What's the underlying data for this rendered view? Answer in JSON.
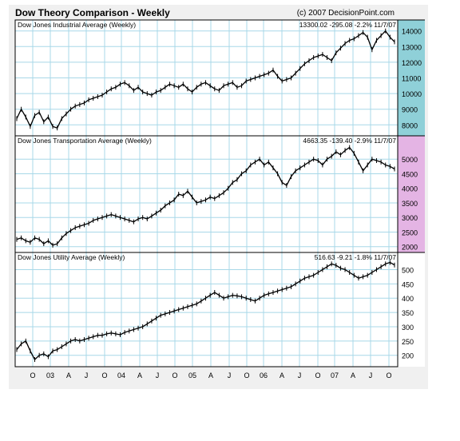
{
  "header": {
    "title": "Dow Theory Comparison - Weekly",
    "copyright": "(c) 2007 DecisionPoint.com"
  },
  "colors": {
    "background": "#f0f0f0",
    "plot_background": "#ffffff",
    "grid": "#a8d8e8",
    "band_industrial": "#8fd0d8",
    "band_transport": "#e4b4e4",
    "band_utility": "#ffffff",
    "price_line": "#000000"
  },
  "x_axis": {
    "tick_labels": [
      "O",
      "03",
      "A",
      "J",
      "O",
      "04",
      "A",
      "J",
      "O",
      "05",
      "A",
      "J",
      "O",
      "06",
      "A",
      "J",
      "O",
      "07",
      "A",
      "J",
      "O"
    ]
  },
  "chart_data": [
    {
      "type": "line",
      "title": "Dow Jones Industrial Average (Weekly)",
      "stats": {
        "last": "13300.02",
        "change": "-295.08",
        "pct": "-2.2%",
        "date": "11/7/07"
      },
      "ylim": [
        7300,
        14700
      ],
      "yticks": [
        8000,
        9000,
        10000,
        11000,
        12000,
        13000,
        14000
      ],
      "ytick_labels": [
        "8000",
        "9000",
        "10000",
        "11000",
        "12000",
        "13000",
        "14000"
      ],
      "x": [
        0,
        1,
        2,
        3,
        4,
        5,
        6,
        7,
        8,
        9,
        10,
        11,
        12,
        13,
        14,
        15,
        16,
        17,
        18,
        19,
        20,
        21,
        22,
        23,
        24,
        25,
        26,
        27,
        28,
        29,
        30,
        31,
        32,
        33,
        34,
        35,
        36,
        37,
        38,
        39,
        40,
        41,
        42,
        43,
        44,
        45,
        46,
        47,
        48,
        49,
        50,
        51,
        52,
        53,
        54,
        55,
        56,
        57,
        58,
        59,
        60,
        61,
        62,
        63,
        64,
        65,
        66,
        67,
        68,
        69,
        70,
        71,
        72,
        73,
        74,
        75,
        76,
        77,
        78,
        79,
        80,
        81,
        82,
        83,
        84
      ],
      "values": [
        8400,
        9000,
        8500,
        7900,
        8600,
        8800,
        8200,
        8500,
        7900,
        7800,
        8400,
        8700,
        9000,
        9200,
        9300,
        9400,
        9600,
        9700,
        9800,
        9900,
        10100,
        10300,
        10400,
        10600,
        10700,
        10500,
        10200,
        10400,
        10100,
        10000,
        9900,
        10100,
        10200,
        10400,
        10600,
        10500,
        10400,
        10600,
        10300,
        10100,
        10400,
        10600,
        10700,
        10500,
        10300,
        10200,
        10500,
        10600,
        10700,
        10400,
        10500,
        10800,
        10900,
        11000,
        11100,
        11200,
        11300,
        11500,
        11100,
        10800,
        10900,
        11000,
        11300,
        11600,
        11900,
        12100,
        12300,
        12400,
        12500,
        12300,
        12100,
        12600,
        12900,
        13200,
        13400,
        13500,
        13700,
        13900,
        13600,
        12800,
        13400,
        13700,
        14000,
        13600,
        13300
      ]
    },
    {
      "type": "line",
      "title": "Dow Jones Transportation Average (Weekly)",
      "stats": {
        "last": "4663.35",
        "change": "-139.40",
        "pct": "-2.9%",
        "date": "11/7/07"
      },
      "ylim": [
        1800,
        5800
      ],
      "yticks": [
        2000,
        2500,
        3000,
        3500,
        4000,
        4500,
        5000
      ],
      "ytick_labels": [
        "2000",
        "2500",
        "3000",
        "3500",
        "4000",
        "4500",
        "5000"
      ],
      "x": [
        0,
        1,
        2,
        3,
        4,
        5,
        6,
        7,
        8,
        9,
        10,
        11,
        12,
        13,
        14,
        15,
        16,
        17,
        18,
        19,
        20,
        21,
        22,
        23,
        24,
        25,
        26,
        27,
        28,
        29,
        30,
        31,
        32,
        33,
        34,
        35,
        36,
        37,
        38,
        39,
        40,
        41,
        42,
        43,
        44,
        45,
        46,
        47,
        48,
        49,
        50,
        51,
        52,
        53,
        54,
        55,
        56,
        57,
        58,
        59,
        60,
        61,
        62,
        63,
        64,
        65,
        66,
        67,
        68,
        69,
        70,
        71,
        72,
        73,
        74,
        75,
        76,
        77,
        78,
        79,
        80,
        81,
        82,
        83,
        84
      ],
      "values": [
        2250,
        2300,
        2200,
        2150,
        2300,
        2250,
        2100,
        2200,
        2050,
        2100,
        2300,
        2450,
        2550,
        2650,
        2700,
        2750,
        2800,
        2900,
        2950,
        3000,
        3050,
        3100,
        3050,
        3000,
        2950,
        2900,
        2850,
        2950,
        3000,
        2950,
        3050,
        3150,
        3250,
        3400,
        3500,
        3600,
        3800,
        3750,
        3900,
        3700,
        3500,
        3550,
        3600,
        3700,
        3650,
        3750,
        3850,
        4000,
        4200,
        4300,
        4500,
        4600,
        4800,
        4900,
        5000,
        4800,
        4900,
        4700,
        4500,
        4200,
        4100,
        4400,
        4600,
        4700,
        4800,
        4900,
        5000,
        4950,
        4800,
        5000,
        5100,
        5250,
        5150,
        5300,
        5400,
        5200,
        4900,
        4600,
        4800,
        5000,
        4950,
        4900,
        4800,
        4750,
        4663
      ]
    },
    {
      "type": "line",
      "title": "Dow Jones Utility Average (Weekly)",
      "stats": {
        "last": "516.63",
        "change": "-9.21",
        "pct": "-1.8%",
        "date": "11/7/07"
      },
      "ylim": [
        160,
        560
      ],
      "yticks": [
        200,
        250,
        300,
        350,
        400,
        450,
        500
      ],
      "ytick_labels": [
        "200",
        "250",
        "300",
        "350",
        "400",
        "450",
        "500"
      ],
      "x": [
        0,
        1,
        2,
        3,
        4,
        5,
        6,
        7,
        8,
        9,
        10,
        11,
        12,
        13,
        14,
        15,
        16,
        17,
        18,
        19,
        20,
        21,
        22,
        23,
        24,
        25,
        26,
        27,
        28,
        29,
        30,
        31,
        32,
        33,
        34,
        35,
        36,
        37,
        38,
        39,
        40,
        41,
        42,
        43,
        44,
        45,
        46,
        47,
        48,
        49,
        50,
        51,
        52,
        53,
        54,
        55,
        56,
        57,
        58,
        59,
        60,
        61,
        62,
        63,
        64,
        65,
        66,
        67,
        68,
        69,
        70,
        71,
        72,
        73,
        74,
        75,
        76,
        77,
        78,
        79,
        80,
        81,
        82,
        83,
        84
      ],
      "values": [
        220,
        240,
        250,
        215,
        185,
        200,
        205,
        195,
        215,
        220,
        230,
        240,
        250,
        255,
        250,
        255,
        260,
        265,
        270,
        270,
        275,
        278,
        275,
        272,
        280,
        285,
        290,
        295,
        300,
        310,
        320,
        330,
        340,
        345,
        350,
        355,
        360,
        365,
        370,
        375,
        380,
        390,
        400,
        410,
        420,
        410,
        400,
        405,
        410,
        408,
        405,
        400,
        395,
        390,
        400,
        410,
        415,
        420,
        425,
        430,
        435,
        440,
        450,
        460,
        470,
        475,
        480,
        490,
        500,
        510,
        520,
        515,
        505,
        500,
        490,
        480,
        470,
        475,
        480,
        490,
        500,
        510,
        520,
        525,
        516
      ]
    }
  ]
}
